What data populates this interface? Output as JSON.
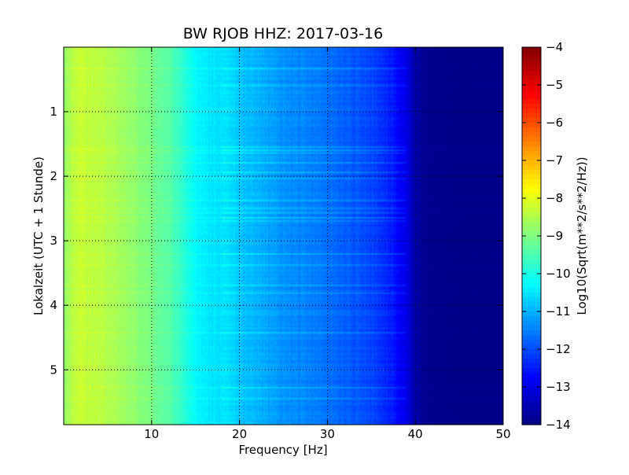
{
  "chart_data": {
    "type": "heatmap",
    "title": "BW RJOB HHZ: 2017-03-16",
    "xlabel": "Frequency [Hz]",
    "ylabel": "Lokalzeit (UTC + 1 Stunde)",
    "xlim": [
      0,
      50
    ],
    "ylim": [
      5.85,
      0
    ],
    "x_ticks": [
      10,
      20,
      30,
      40,
      50
    ],
    "y_ticks": [
      1,
      2,
      3,
      4,
      5
    ],
    "grid": true,
    "colormap": "jet",
    "colorbar": {
      "label": "Log10(Sqrt(m**2/s**2/Hz))",
      "range": [
        -14,
        -4
      ],
      "ticks": [
        -4,
        -5,
        -6,
        -7,
        -8,
        -9,
        -10,
        -11,
        -12,
        -13,
        -14
      ]
    },
    "profile": {
      "frequency_hz": [
        0,
        1,
        2,
        3,
        5,
        8,
        10,
        12,
        13.5,
        15,
        17,
        19,
        20,
        22,
        25,
        28,
        31,
        33,
        35,
        37,
        39,
        40,
        41,
        45,
        50
      ],
      "log10_amplitude": [
        -8.9,
        -8.4,
        -8.3,
        -8.35,
        -8.5,
        -8.8,
        -9.1,
        -9.4,
        -9.8,
        -10.3,
        -10.5,
        -10.6,
        -10.8,
        -11.0,
        -11.3,
        -11.5,
        -11.7,
        -11.9,
        -12.1,
        -12.4,
        -13.0,
        -13.6,
        -13.85,
        -13.9,
        -13.9
      ]
    }
  }
}
